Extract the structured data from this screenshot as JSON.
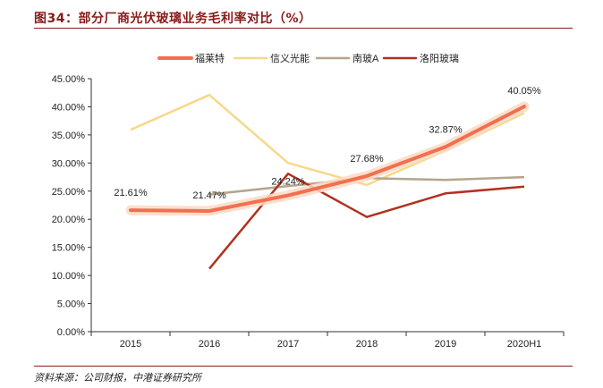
{
  "header": {
    "title": "图34：部分厂商光伏玻璃业务毛利率对比（%）"
  },
  "footer": {
    "source": "资料来源：公司财报，中港证券研究所"
  },
  "colors": {
    "accent": "#8b1a1a",
    "fulaite": "#f07050",
    "xinyi": "#f5d98a",
    "nanbo": "#b5a58c",
    "luoyang": "#b0321e"
  },
  "chart_data": {
    "type": "line",
    "title": "",
    "xlabel": "",
    "ylabel": "",
    "categories": [
      "2015",
      "2016",
      "2017",
      "2018",
      "2019",
      "2020H1"
    ],
    "ylim": [
      0,
      45
    ],
    "yticks": [
      "0.00%",
      "5.00%",
      "10.00%",
      "15.00%",
      "20.00%",
      "25.00%",
      "30.00%",
      "35.00%",
      "40.00%",
      "45.00%"
    ],
    "legend_position": "top",
    "series": [
      {
        "name": "福莱特",
        "values": [
          21.61,
          21.47,
          24.24,
          27.68,
          32.87,
          40.05
        ],
        "labels": [
          "21.61%",
          "21.47%",
          "24.24%",
          "27.68%",
          "32.87%",
          "40.05%"
        ],
        "color": "#f07050"
      },
      {
        "name": "信义光能",
        "values": [
          35.9,
          42.1,
          30.0,
          26.1,
          32.2,
          38.9
        ],
        "color": "#f5d98a"
      },
      {
        "name": "南玻A",
        "values": [
          null,
          24.4,
          25.9,
          27.3,
          27.0,
          27.5
        ],
        "color": "#b5a58c"
      },
      {
        "name": "洛阳玻璃",
        "values": [
          null,
          11.2,
          28.1,
          20.4,
          24.6,
          25.8
        ],
        "color": "#b0321e"
      }
    ]
  }
}
